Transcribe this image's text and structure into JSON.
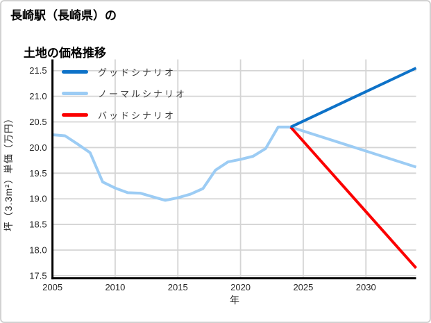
{
  "title": {
    "line1": "長崎駅（長崎県）の",
    "line2": "土地の価格推移"
  },
  "axes": {
    "x_label": "年",
    "y_label": "坪（3.3m²）単価（万円）"
  },
  "legend": {
    "items": [
      {
        "label": "グッドシナリオ",
        "color": "#0d72c8"
      },
      {
        "label": "ノーマルシナリオ",
        "color": "#9cccf4"
      },
      {
        "label": "バッドシナリオ",
        "color": "#fb0000"
      }
    ]
  },
  "colors": {
    "grid": "#d4d4d4",
    "spine": "#000000",
    "tick_text": "#262626"
  },
  "chart_data": {
    "type": "line",
    "title": "長崎駅（長崎県）の土地の価格推移",
    "xlabel": "年",
    "ylabel": "坪（3.3m²）単価（万円）",
    "xlim": [
      2005,
      2034
    ],
    "ylim": [
      17.45,
      21.72
    ],
    "x_ticks": [
      2005,
      2010,
      2015,
      2020,
      2025,
      2030
    ],
    "x_tick_labels": [
      "2005",
      "2010",
      "2015",
      "2020",
      "2025",
      "2030"
    ],
    "y_ticks": [
      17.5,
      18.0,
      18.5,
      19.0,
      19.5,
      20.0,
      20.5,
      21.0,
      21.5
    ],
    "y_tick_labels": [
      "17.5",
      "18.0",
      "18.5",
      "19.0",
      "19.5",
      "20.0",
      "20.5",
      "21.0",
      "21.5"
    ],
    "grid": true,
    "legend_position": "upper left",
    "series": [
      {
        "name": "ノーマルシナリオ",
        "color": "#9cccf4",
        "points": [
          [
            2005,
            20.25
          ],
          [
            2006,
            20.23
          ],
          [
            2007,
            20.07
          ],
          [
            2008,
            19.9
          ],
          [
            2009,
            19.33
          ],
          [
            2010,
            19.21
          ],
          [
            2011,
            19.12
          ],
          [
            2012,
            19.11
          ],
          [
            2013,
            19.04
          ],
          [
            2014,
            18.97
          ],
          [
            2015,
            19.02
          ],
          [
            2016,
            19.09
          ],
          [
            2017,
            19.2
          ],
          [
            2018,
            19.56
          ],
          [
            2019,
            19.72
          ],
          [
            2020,
            19.77
          ],
          [
            2021,
            19.83
          ],
          [
            2022,
            19.98
          ],
          [
            2023,
            20.4
          ],
          [
            2024,
            20.4
          ],
          [
            2034,
            19.62
          ]
        ]
      },
      {
        "name": "バッドシナリオ",
        "color": "#fb0000",
        "points": [
          [
            2024,
            20.4
          ],
          [
            2034,
            17.65
          ]
        ]
      },
      {
        "name": "グッドシナリオ",
        "color": "#0d72c8",
        "points": [
          [
            2024,
            20.4
          ],
          [
            2034,
            21.55
          ]
        ]
      }
    ]
  }
}
